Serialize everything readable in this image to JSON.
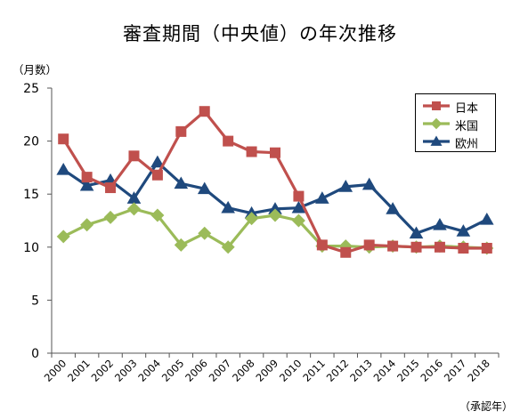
{
  "chart_data": {
    "type": "line",
    "title": "審査期間（中央値）の年次推移",
    "ylabel": "（月数）",
    "xlabel": "（承認年）",
    "ylim": [
      0,
      25
    ],
    "yticks": [
      0,
      5,
      10,
      15,
      20,
      25
    ],
    "grid": false,
    "legend_position": "top-right",
    "categories": [
      "2000",
      "2001",
      "2002",
      "2003",
      "2004",
      "2005",
      "2006",
      "2007",
      "2008",
      "2009",
      "2010",
      "2011",
      "2012",
      "2013",
      "2014",
      "2015",
      "2016",
      "2017",
      "2018"
    ],
    "series": [
      {
        "name": "日本",
        "color": "#c0504d",
        "marker": "square",
        "values": [
          20.2,
          16.6,
          15.6,
          18.6,
          16.8,
          20.9,
          22.8,
          20.0,
          19.0,
          18.9,
          14.8,
          10.2,
          9.5,
          10.2,
          10.1,
          10.0,
          10.0,
          9.9,
          9.9
        ]
      },
      {
        "name": "米国",
        "color": "#9bbb59",
        "marker": "diamond",
        "values": [
          11.0,
          12.1,
          12.8,
          13.6,
          13.0,
          10.2,
          11.3,
          10.0,
          12.7,
          13.0,
          12.5,
          10.1,
          10.1,
          10.0,
          10.1,
          10.0,
          10.1,
          10.0,
          9.9
        ]
      },
      {
        "name": "欧州",
        "color": "#1f497d",
        "marker": "triangle",
        "values": [
          17.3,
          15.8,
          16.3,
          14.6,
          18.0,
          16.0,
          15.5,
          13.7,
          13.2,
          13.6,
          13.7,
          14.6,
          15.7,
          15.9,
          13.6,
          11.3,
          12.1,
          11.5,
          12.6
        ]
      }
    ]
  }
}
